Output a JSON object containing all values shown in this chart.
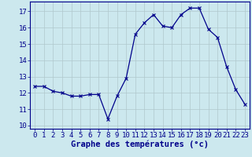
{
  "x": [
    0,
    1,
    2,
    3,
    4,
    5,
    6,
    7,
    8,
    9,
    10,
    11,
    12,
    13,
    14,
    15,
    16,
    17,
    18,
    19,
    20,
    21,
    22,
    23
  ],
  "y": [
    12.4,
    12.4,
    12.1,
    12.0,
    11.8,
    11.8,
    11.9,
    11.9,
    10.4,
    11.8,
    12.9,
    15.6,
    16.3,
    16.8,
    16.1,
    16.0,
    16.8,
    17.2,
    17.2,
    15.9,
    15.4,
    13.6,
    12.2,
    11.3
  ],
  "line_color": "#00008b",
  "marker": "x",
  "markersize": 3,
  "linewidth": 0.9,
  "xlabel": "Graphe des températures (°c)",
  "xlabel_fontsize": 7.5,
  "ylabel_ticks": [
    10,
    11,
    12,
    13,
    14,
    15,
    16,
    17
  ],
  "xlim": [
    -0.5,
    23.5
  ],
  "ylim": [
    9.8,
    17.6
  ],
  "background_color": "#cce8ee",
  "grid_color": "#b0c8cc",
  "tick_color": "#00008b",
  "tick_fontsize": 6.5,
  "spine_color": "#00008b"
}
